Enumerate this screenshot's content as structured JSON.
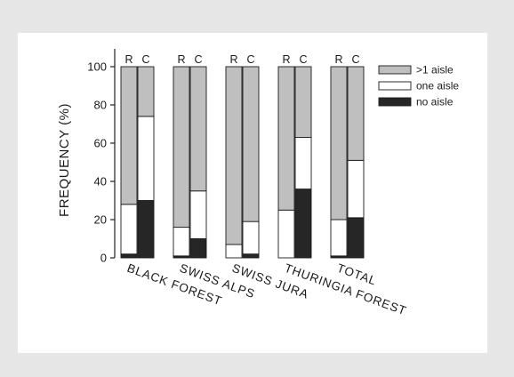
{
  "chart_data": {
    "type": "bar",
    "stacked": true,
    "ylabel": "FREQUENCY (%)",
    "xlabel": "",
    "title": "",
    "ylim": [
      0,
      100
    ],
    "yticks": [
      0,
      20,
      40,
      60,
      80,
      100
    ],
    "grid": false,
    "legend_position": "top-right",
    "categories": [
      "BLACK FOREST",
      "SWISS ALPS",
      "SWISS JURA",
      "THURINGIA FOREST",
      "TOTAL"
    ],
    "bar_tags": [
      "R",
      "C"
    ],
    "series": [
      {
        "name": "no aisle",
        "color": "#262626",
        "values": {
          "R": [
            2,
            1,
            0,
            0,
            1
          ],
          "C": [
            30,
            10,
            2,
            36,
            21
          ]
        }
      },
      {
        "name": "one aisle",
        "color": "#ffffff",
        "values": {
          "R": [
            26,
            15,
            7,
            25,
            19
          ],
          "C": [
            44,
            25,
            17,
            27,
            30
          ]
        }
      },
      {
        "name": ">1 aisle",
        "color": "#bfbfbf",
        "values": {
          "R": [
            72,
            84,
            93,
            75,
            80
          ],
          "C": [
            26,
            65,
            81,
            37,
            49
          ]
        }
      }
    ],
    "legend_order": [
      ">1 aisle",
      "one aisle",
      "no aisle"
    ]
  }
}
